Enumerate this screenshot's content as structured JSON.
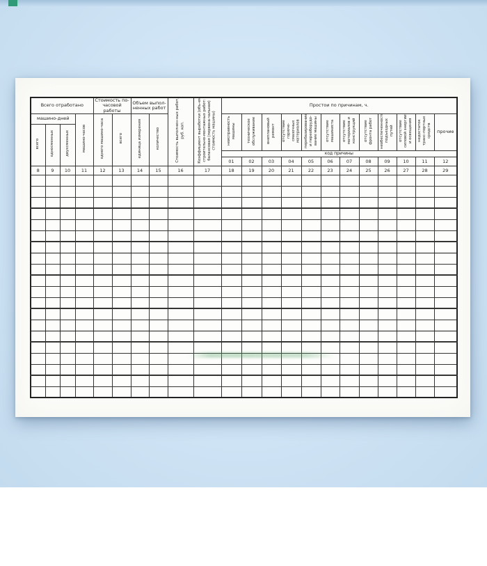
{
  "colors": {
    "background": "#cfe4f5",
    "sheet": "#fcfcfa",
    "grid_line": "#333333",
    "top_strip": "#a3c2dc",
    "corner_marker": "#2f9c77",
    "watermark_green": "#5aa56b"
  },
  "table": {
    "groups": {
      "total_worked": "Всего отработано",
      "machine_days": "машино-дней",
      "hourly_cost": "Стоимость по-часовой работы",
      "volume": "Объем выпол-ненных работ",
      "downtime": "Простои по причинам, ч.",
      "cause_code_row": "код причины"
    },
    "columns_left": [
      {
        "label": "всего",
        "num": "8"
      },
      {
        "label": "односменных",
        "num": "9"
      },
      {
        "label": "двухсменных",
        "num": "10"
      },
      {
        "label": "машино-часов",
        "num": "11"
      },
      {
        "label": "одного машино-часа",
        "num": "12"
      },
      {
        "label": "всего",
        "num": "13"
      },
      {
        "label": "единица измерения",
        "num": "14"
      },
      {
        "label": "количество",
        "num": "15"
      },
      {
        "label": "Стоимость выполнен-ных работ, руб. коп.",
        "num": "16"
      },
      {
        "label": "Коэффициент выработки (объ-ем строительно-монтажных работ: балансовая (первона-чальная) стоимость машины)",
        "num": "17"
      }
    ],
    "downtime_columns": [
      {
        "label": "неисправность машины",
        "code": "01",
        "num": "18"
      },
      {
        "label": "техническое обслуживание",
        "code": "02",
        "num": "19"
      },
      {
        "label": "внеплановый ремонт",
        "code": "03",
        "num": "20"
      },
      {
        "label": "отсутствие горюче-смазочных материалов",
        "code": "04",
        "num": "21"
      },
      {
        "label": "перебазирование и переоборудо-вание машины",
        "code": "05",
        "num": "22"
      },
      {
        "label": "отсутствие машиниста",
        "code": "06",
        "num": "23"
      },
      {
        "label": "отсутствие материалов и конструкций",
        "code": "07",
        "num": "24"
      },
      {
        "label": "отсутствие фронта работ",
        "code": "08",
        "num": "25"
      },
      {
        "label": "необеспеченность подъездных путей",
        "code": "09",
        "num": "26"
      },
      {
        "label": "отсутствие силовой энергии и освещения",
        "code": "10",
        "num": "27"
      },
      {
        "label": "недостаток транс-портных средств",
        "code": "11",
        "num": "28"
      },
      {
        "label": "прочие",
        "code": "12",
        "num": "29"
      }
    ],
    "body_rows": 20
  }
}
